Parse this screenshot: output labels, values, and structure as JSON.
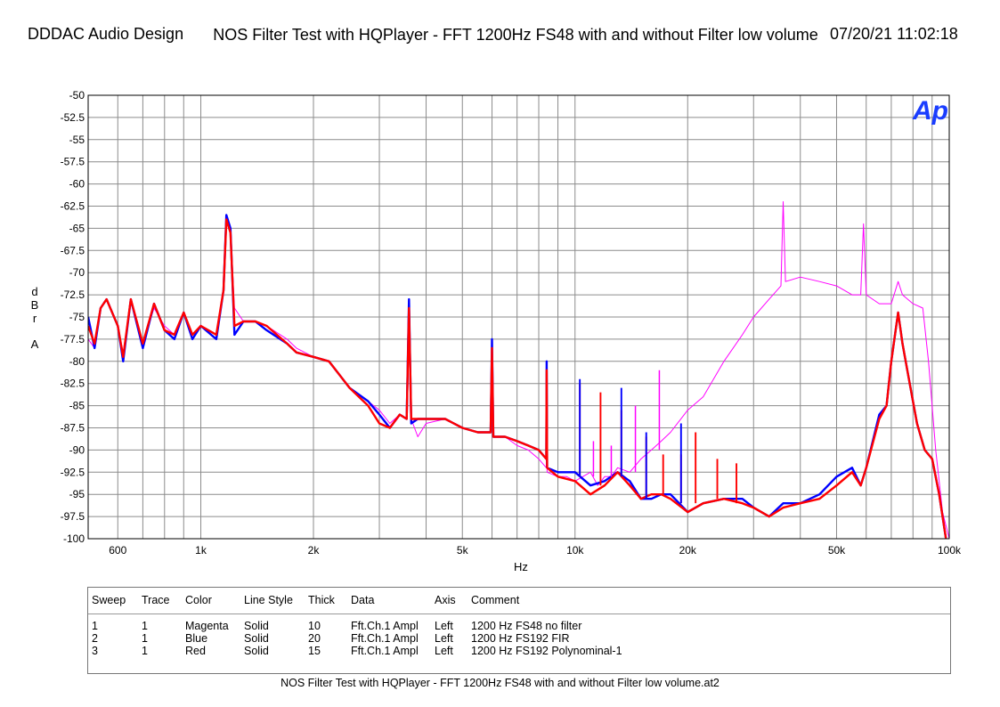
{
  "header": {
    "left": "DDDAC Audio Design",
    "title": "NOS Filter Test with HQPlayer - FFT 1200Hz FS48 with and without Filter low volume",
    "right": "07/20/21 11:02:18"
  },
  "logo_text": "Ap",
  "chart_data": {
    "type": "line",
    "xscale": "log",
    "xlabel": "Hz",
    "ylabel_lines": [
      "d",
      "B",
      "r",
      "A"
    ],
    "xlim": [
      500,
      100000
    ],
    "ylim": [
      -100,
      -50
    ],
    "x_ticks": [
      {
        "v": 600,
        "label": "600"
      },
      {
        "v": 1000,
        "label": "1k"
      },
      {
        "v": 2000,
        "label": "2k"
      },
      {
        "v": 5000,
        "label": "5k"
      },
      {
        "v": 10000,
        "label": "10k"
      },
      {
        "v": 20000,
        "label": "20k"
      },
      {
        "v": 50000,
        "label": "50k"
      },
      {
        "v": 100000,
        "label": "100k"
      }
    ],
    "y_ticks": [
      "-50",
      "-52.5",
      "-55",
      "-57.5",
      "-60",
      "-62.5",
      "-65",
      "-67.5",
      "-70",
      "-72.5",
      "-75",
      "-77.5",
      "-80",
      "-82.5",
      "-85",
      "-87.5",
      "-90",
      "-92.5",
      "-95",
      "-97.5",
      "-100"
    ],
    "grid": true,
    "series": [
      {
        "name": "1200 Hz FS48 no filter",
        "color": "#ff00ff",
        "width": 1,
        "points": [
          [
            500,
            -77.5
          ],
          [
            520,
            -78.5
          ],
          [
            540,
            -74
          ],
          [
            560,
            -73
          ],
          [
            600,
            -76
          ],
          [
            620,
            -79
          ],
          [
            650,
            -73
          ],
          [
            700,
            -78
          ],
          [
            750,
            -74
          ],
          [
            800,
            -76
          ],
          [
            850,
            -77
          ],
          [
            900,
            -74.5
          ],
          [
            950,
            -77
          ],
          [
            1000,
            -76
          ],
          [
            1100,
            -77
          ],
          [
            1150,
            -72
          ],
          [
            1170,
            -63.5
          ],
          [
            1200,
            -65
          ],
          [
            1230,
            -74
          ],
          [
            1300,
            -75.5
          ],
          [
            1400,
            -75.5
          ],
          [
            1500,
            -76
          ],
          [
            1700,
            -77.5
          ],
          [
            1800,
            -78.5
          ],
          [
            2000,
            -79.5
          ],
          [
            2200,
            -80
          ],
          [
            2500,
            -83
          ],
          [
            2800,
            -84.5
          ],
          [
            3000,
            -85.5
          ],
          [
            3200,
            -87
          ],
          [
            3400,
            -86
          ],
          [
            3550,
            -86.5
          ],
          [
            3600,
            -73
          ],
          [
            3650,
            -86.5
          ],
          [
            3800,
            -88.5
          ],
          [
            4000,
            -87
          ],
          [
            4500,
            -86.5
          ],
          [
            5000,
            -87.5
          ],
          [
            5500,
            -88
          ],
          [
            5950,
            -88
          ],
          [
            6000,
            -78
          ],
          [
            6050,
            -88.5
          ],
          [
            6500,
            -88.5
          ],
          [
            7000,
            -89.5
          ],
          [
            7500,
            -90
          ],
          [
            8000,
            -91
          ],
          [
            8380,
            -92
          ],
          [
            8400,
            -80
          ],
          [
            8420,
            -92.5
          ],
          [
            9000,
            -93
          ],
          [
            9500,
            -93
          ],
          [
            10000,
            -93.5
          ],
          [
            11000,
            -92.5
          ],
          [
            11500,
            -94
          ],
          [
            12000,
            -93
          ],
          [
            12500,
            -93
          ],
          [
            13000,
            -92
          ],
          [
            14000,
            -92.5
          ],
          [
            15000,
            -91
          ],
          [
            16000,
            -90
          ],
          [
            17000,
            -89
          ],
          [
            18000,
            -88
          ],
          [
            20000,
            -85.5
          ],
          [
            22000,
            -84
          ],
          [
            25000,
            -80
          ],
          [
            28000,
            -77
          ],
          [
            30000,
            -75
          ],
          [
            33000,
            -73
          ],
          [
            35500,
            -71.5
          ],
          [
            36000,
            -62
          ],
          [
            36500,
            -71
          ],
          [
            40000,
            -70.5
          ],
          [
            45000,
            -71
          ],
          [
            50000,
            -71.5
          ],
          [
            55000,
            -72.5
          ],
          [
            58000,
            -72.5
          ],
          [
            59000,
            -64.5
          ],
          [
            60000,
            -72.5
          ],
          [
            65000,
            -73.5
          ],
          [
            70000,
            -73.5
          ],
          [
            73000,
            -71
          ],
          [
            75000,
            -72.5
          ],
          [
            80000,
            -73.5
          ],
          [
            85000,
            -74
          ],
          [
            88000,
            -80
          ],
          [
            92000,
            -90
          ],
          [
            96000,
            -97
          ],
          [
            100000,
            -100
          ]
        ]
      },
      {
        "name": "1200 Hz FS192 FIR",
        "color": "#0000ff",
        "width": 2.4,
        "points": [
          [
            500,
            -75
          ],
          [
            520,
            -78.5
          ],
          [
            540,
            -74
          ],
          [
            560,
            -73
          ],
          [
            600,
            -76
          ],
          [
            620,
            -80
          ],
          [
            650,
            -73
          ],
          [
            700,
            -78.5
          ],
          [
            750,
            -73.5
          ],
          [
            800,
            -76.5
          ],
          [
            850,
            -77.5
          ],
          [
            900,
            -74.5
          ],
          [
            950,
            -77.5
          ],
          [
            1000,
            -76
          ],
          [
            1100,
            -77.5
          ],
          [
            1150,
            -72
          ],
          [
            1170,
            -63.5
          ],
          [
            1200,
            -65
          ],
          [
            1230,
            -77
          ],
          [
            1300,
            -75.5
          ],
          [
            1400,
            -75.5
          ],
          [
            1500,
            -76.5
          ],
          [
            1700,
            -78
          ],
          [
            1800,
            -79
          ],
          [
            2000,
            -79.5
          ],
          [
            2200,
            -80
          ],
          [
            2500,
            -83
          ],
          [
            2800,
            -84.5
          ],
          [
            3000,
            -86
          ],
          [
            3200,
            -87.5
          ],
          [
            3400,
            -86
          ],
          [
            3550,
            -86.5
          ],
          [
            3600,
            -73
          ],
          [
            3650,
            -87
          ],
          [
            3800,
            -86.5
          ],
          [
            4000,
            -86.5
          ],
          [
            4500,
            -86.5
          ],
          [
            5000,
            -87.5
          ],
          [
            5500,
            -88
          ],
          [
            5950,
            -88
          ],
          [
            6000,
            -77.5
          ],
          [
            6050,
            -88.5
          ],
          [
            6500,
            -88.5
          ],
          [
            7000,
            -89
          ],
          [
            7500,
            -89.5
          ],
          [
            8000,
            -90
          ],
          [
            8380,
            -91
          ],
          [
            8400,
            -80
          ],
          [
            8420,
            -92
          ],
          [
            9000,
            -92.5
          ],
          [
            10000,
            -92.5
          ],
          [
            11000,
            -94
          ],
          [
            12000,
            -93.5
          ],
          [
            13000,
            -92.5
          ],
          [
            14000,
            -93.5
          ],
          [
            15000,
            -95.5
          ],
          [
            16000,
            -95.5
          ],
          [
            17000,
            -95
          ],
          [
            18000,
            -95
          ],
          [
            20000,
            -97
          ],
          [
            22000,
            -96
          ],
          [
            25000,
            -95.5
          ],
          [
            28000,
            -95.5
          ],
          [
            30000,
            -96.5
          ],
          [
            33000,
            -97.5
          ],
          [
            36000,
            -96
          ],
          [
            40000,
            -96
          ],
          [
            45000,
            -95
          ],
          [
            50000,
            -93
          ],
          [
            55000,
            -92
          ],
          [
            58000,
            -94
          ],
          [
            60000,
            -92
          ],
          [
            65000,
            -86
          ],
          [
            68000,
            -85
          ],
          [
            70000,
            -80
          ],
          [
            73000,
            -74.5
          ],
          [
            75000,
            -78
          ],
          [
            78000,
            -82
          ],
          [
            82000,
            -87
          ],
          [
            86000,
            -90
          ],
          [
            90000,
            -91
          ],
          [
            94000,
            -95
          ],
          [
            98000,
            -100
          ]
        ]
      },
      {
        "name": "1200 Hz FS192 Polynominal-1",
        "color": "#ff0000",
        "width": 2.4,
        "points": [
          [
            500,
            -76
          ],
          [
            520,
            -78
          ],
          [
            540,
            -74
          ],
          [
            560,
            -73
          ],
          [
            600,
            -76
          ],
          [
            620,
            -79.5
          ],
          [
            650,
            -73
          ],
          [
            700,
            -78
          ],
          [
            750,
            -73.5
          ],
          [
            800,
            -76.5
          ],
          [
            850,
            -77
          ],
          [
            900,
            -74.5
          ],
          [
            950,
            -77
          ],
          [
            1000,
            -76
          ],
          [
            1100,
            -77
          ],
          [
            1150,
            -72
          ],
          [
            1170,
            -64
          ],
          [
            1200,
            -65.5
          ],
          [
            1230,
            -76
          ],
          [
            1300,
            -75.5
          ],
          [
            1400,
            -75.5
          ],
          [
            1500,
            -76
          ],
          [
            1700,
            -78
          ],
          [
            1800,
            -79
          ],
          [
            2000,
            -79.5
          ],
          [
            2200,
            -80
          ],
          [
            2500,
            -83
          ],
          [
            2800,
            -85
          ],
          [
            3000,
            -87
          ],
          [
            3200,
            -87.5
          ],
          [
            3400,
            -86
          ],
          [
            3550,
            -86.5
          ],
          [
            3600,
            -74
          ],
          [
            3650,
            -86.5
          ],
          [
            3800,
            -86.5
          ],
          [
            4000,
            -86.5
          ],
          [
            4500,
            -86.5
          ],
          [
            5000,
            -87.5
          ],
          [
            5500,
            -88
          ],
          [
            5950,
            -88
          ],
          [
            6000,
            -78.5
          ],
          [
            6050,
            -88.5
          ],
          [
            6500,
            -88.5
          ],
          [
            7000,
            -89
          ],
          [
            7500,
            -89.5
          ],
          [
            8000,
            -90
          ],
          [
            8380,
            -91
          ],
          [
            8400,
            -81
          ],
          [
            8420,
            -92
          ],
          [
            9000,
            -93
          ],
          [
            10000,
            -93.5
          ],
          [
            11000,
            -95
          ],
          [
            12000,
            -94
          ],
          [
            13000,
            -92.5
          ],
          [
            14000,
            -94
          ],
          [
            15000,
            -95.5
          ],
          [
            16000,
            -95
          ],
          [
            17000,
            -95
          ],
          [
            18000,
            -95.5
          ],
          [
            20000,
            -97
          ],
          [
            22000,
            -96
          ],
          [
            25000,
            -95.5
          ],
          [
            28000,
            -96
          ],
          [
            30000,
            -96.5
          ],
          [
            33000,
            -97.5
          ],
          [
            36000,
            -96.5
          ],
          [
            40000,
            -96
          ],
          [
            45000,
            -95.5
          ],
          [
            50000,
            -94
          ],
          [
            55000,
            -92.5
          ],
          [
            58000,
            -94
          ],
          [
            60000,
            -92
          ],
          [
            65000,
            -86.5
          ],
          [
            68000,
            -85
          ],
          [
            70000,
            -80
          ],
          [
            73000,
            -74.5
          ],
          [
            75000,
            -78
          ],
          [
            78000,
            -82
          ],
          [
            82000,
            -87
          ],
          [
            86000,
            -90
          ],
          [
            90000,
            -91
          ],
          [
            94000,
            -95
          ],
          [
            98000,
            -100
          ]
        ]
      }
    ],
    "spurs": [
      {
        "series": 2,
        "x": 10300,
        "top": -82.5,
        "base": -93
      },
      {
        "series": 2,
        "x": 11700,
        "top": -83.5,
        "base": -94
      },
      {
        "series": 2,
        "x": 13300,
        "top": -85.5,
        "base": -93
      },
      {
        "series": 2,
        "x": 15500,
        "top": -88.5,
        "base": -95.5
      },
      {
        "series": 2,
        "x": 17200,
        "top": -90.5,
        "base": -95
      },
      {
        "series": 2,
        "x": 19200,
        "top": -90.5,
        "base": -96
      },
      {
        "series": 2,
        "x": 21000,
        "top": -88,
        "base": -96
      },
      {
        "series": 2,
        "x": 24000,
        "top": -91,
        "base": -95.5
      },
      {
        "series": 2,
        "x": 27000,
        "top": -91.5,
        "base": -96
      },
      {
        "series": 1,
        "x": 10300,
        "top": -82,
        "base": -93
      },
      {
        "series": 1,
        "x": 13300,
        "top": -83,
        "base": -93
      },
      {
        "series": 1,
        "x": 15500,
        "top": -88,
        "base": -95.5
      },
      {
        "series": 1,
        "x": 19200,
        "top": -87,
        "base": -96
      },
      {
        "series": 0,
        "x": 12500,
        "top": -89.5,
        "base": -93
      },
      {
        "series": 0,
        "x": 14500,
        "top": -85,
        "base": -92.5
      },
      {
        "series": 0,
        "x": 16800,
        "top": -81,
        "base": -90
      },
      {
        "series": 0,
        "x": 11200,
        "top": -89,
        "base": -93
      }
    ]
  },
  "legend": {
    "headers": [
      "Sweep",
      "Trace",
      "Color",
      "Line Style",
      "Thick",
      "Data",
      "Axis",
      "Comment"
    ],
    "rows": [
      [
        "1",
        "1",
        "Magenta",
        "Solid",
        "10",
        "Fft.Ch.1 Ampl",
        "Left",
        "1200 Hz FS48 no filter"
      ],
      [
        "2",
        "1",
        "Blue",
        "Solid",
        "20",
        "Fft.Ch.1 Ampl",
        "Left",
        "1200 Hz FS192 FIR"
      ],
      [
        "3",
        "1",
        "Red",
        "Solid",
        "15",
        "Fft.Ch.1 Ampl",
        "Left",
        "1200 Hz FS192 Polynominal-1"
      ]
    ]
  },
  "footer": "NOS Filter Test with HQPlayer - FFT 1200Hz FS48 with and without Filter low volume.at2"
}
